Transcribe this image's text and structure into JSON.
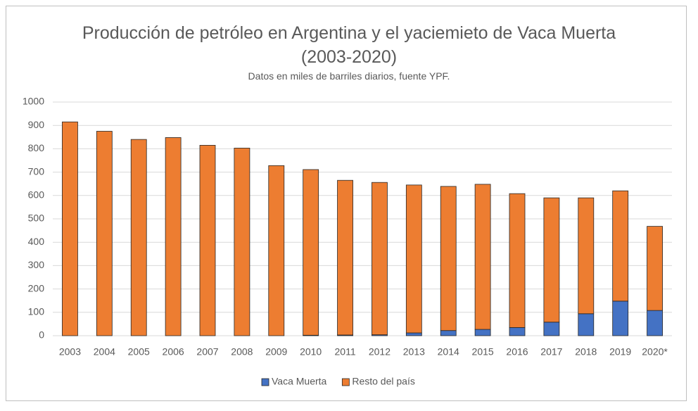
{
  "chart_data": {
    "type": "stacked_bar",
    "title": "Producción de petróleo en Argentina y el yaciemieto de Vaca Muerta (2003-2020)",
    "subtitle": "Datos en miles de barriles diarios, fuente YPF.",
    "categories": [
      "2003",
      "2004",
      "2005",
      "2006",
      "2007",
      "2008",
      "2009",
      "2010",
      "2011",
      "2012",
      "2013",
      "2014",
      "2015",
      "2016",
      "2017",
      "2018",
      "2019",
      "2020*"
    ],
    "series": [
      {
        "name": "Vaca Muerta",
        "color": "#4472c4",
        "values": [
          0,
          0,
          0,
          0,
          0,
          0,
          0,
          2,
          3,
          4,
          12,
          22,
          27,
          35,
          58,
          94,
          148,
          108
        ]
      },
      {
        "name": "Resto del país",
        "color": "#ed7d31",
        "values": [
          915,
          875,
          840,
          848,
          815,
          803,
          728,
          709,
          662,
          652,
          633,
          617,
          621,
          573,
          532,
          496,
          472,
          360
        ]
      }
    ],
    "ylim": [
      0,
      1000
    ],
    "yticks": [
      0,
      100,
      200,
      300,
      400,
      500,
      600,
      700,
      800,
      900,
      1000
    ],
    "grid": true,
    "legend": "bottom"
  }
}
